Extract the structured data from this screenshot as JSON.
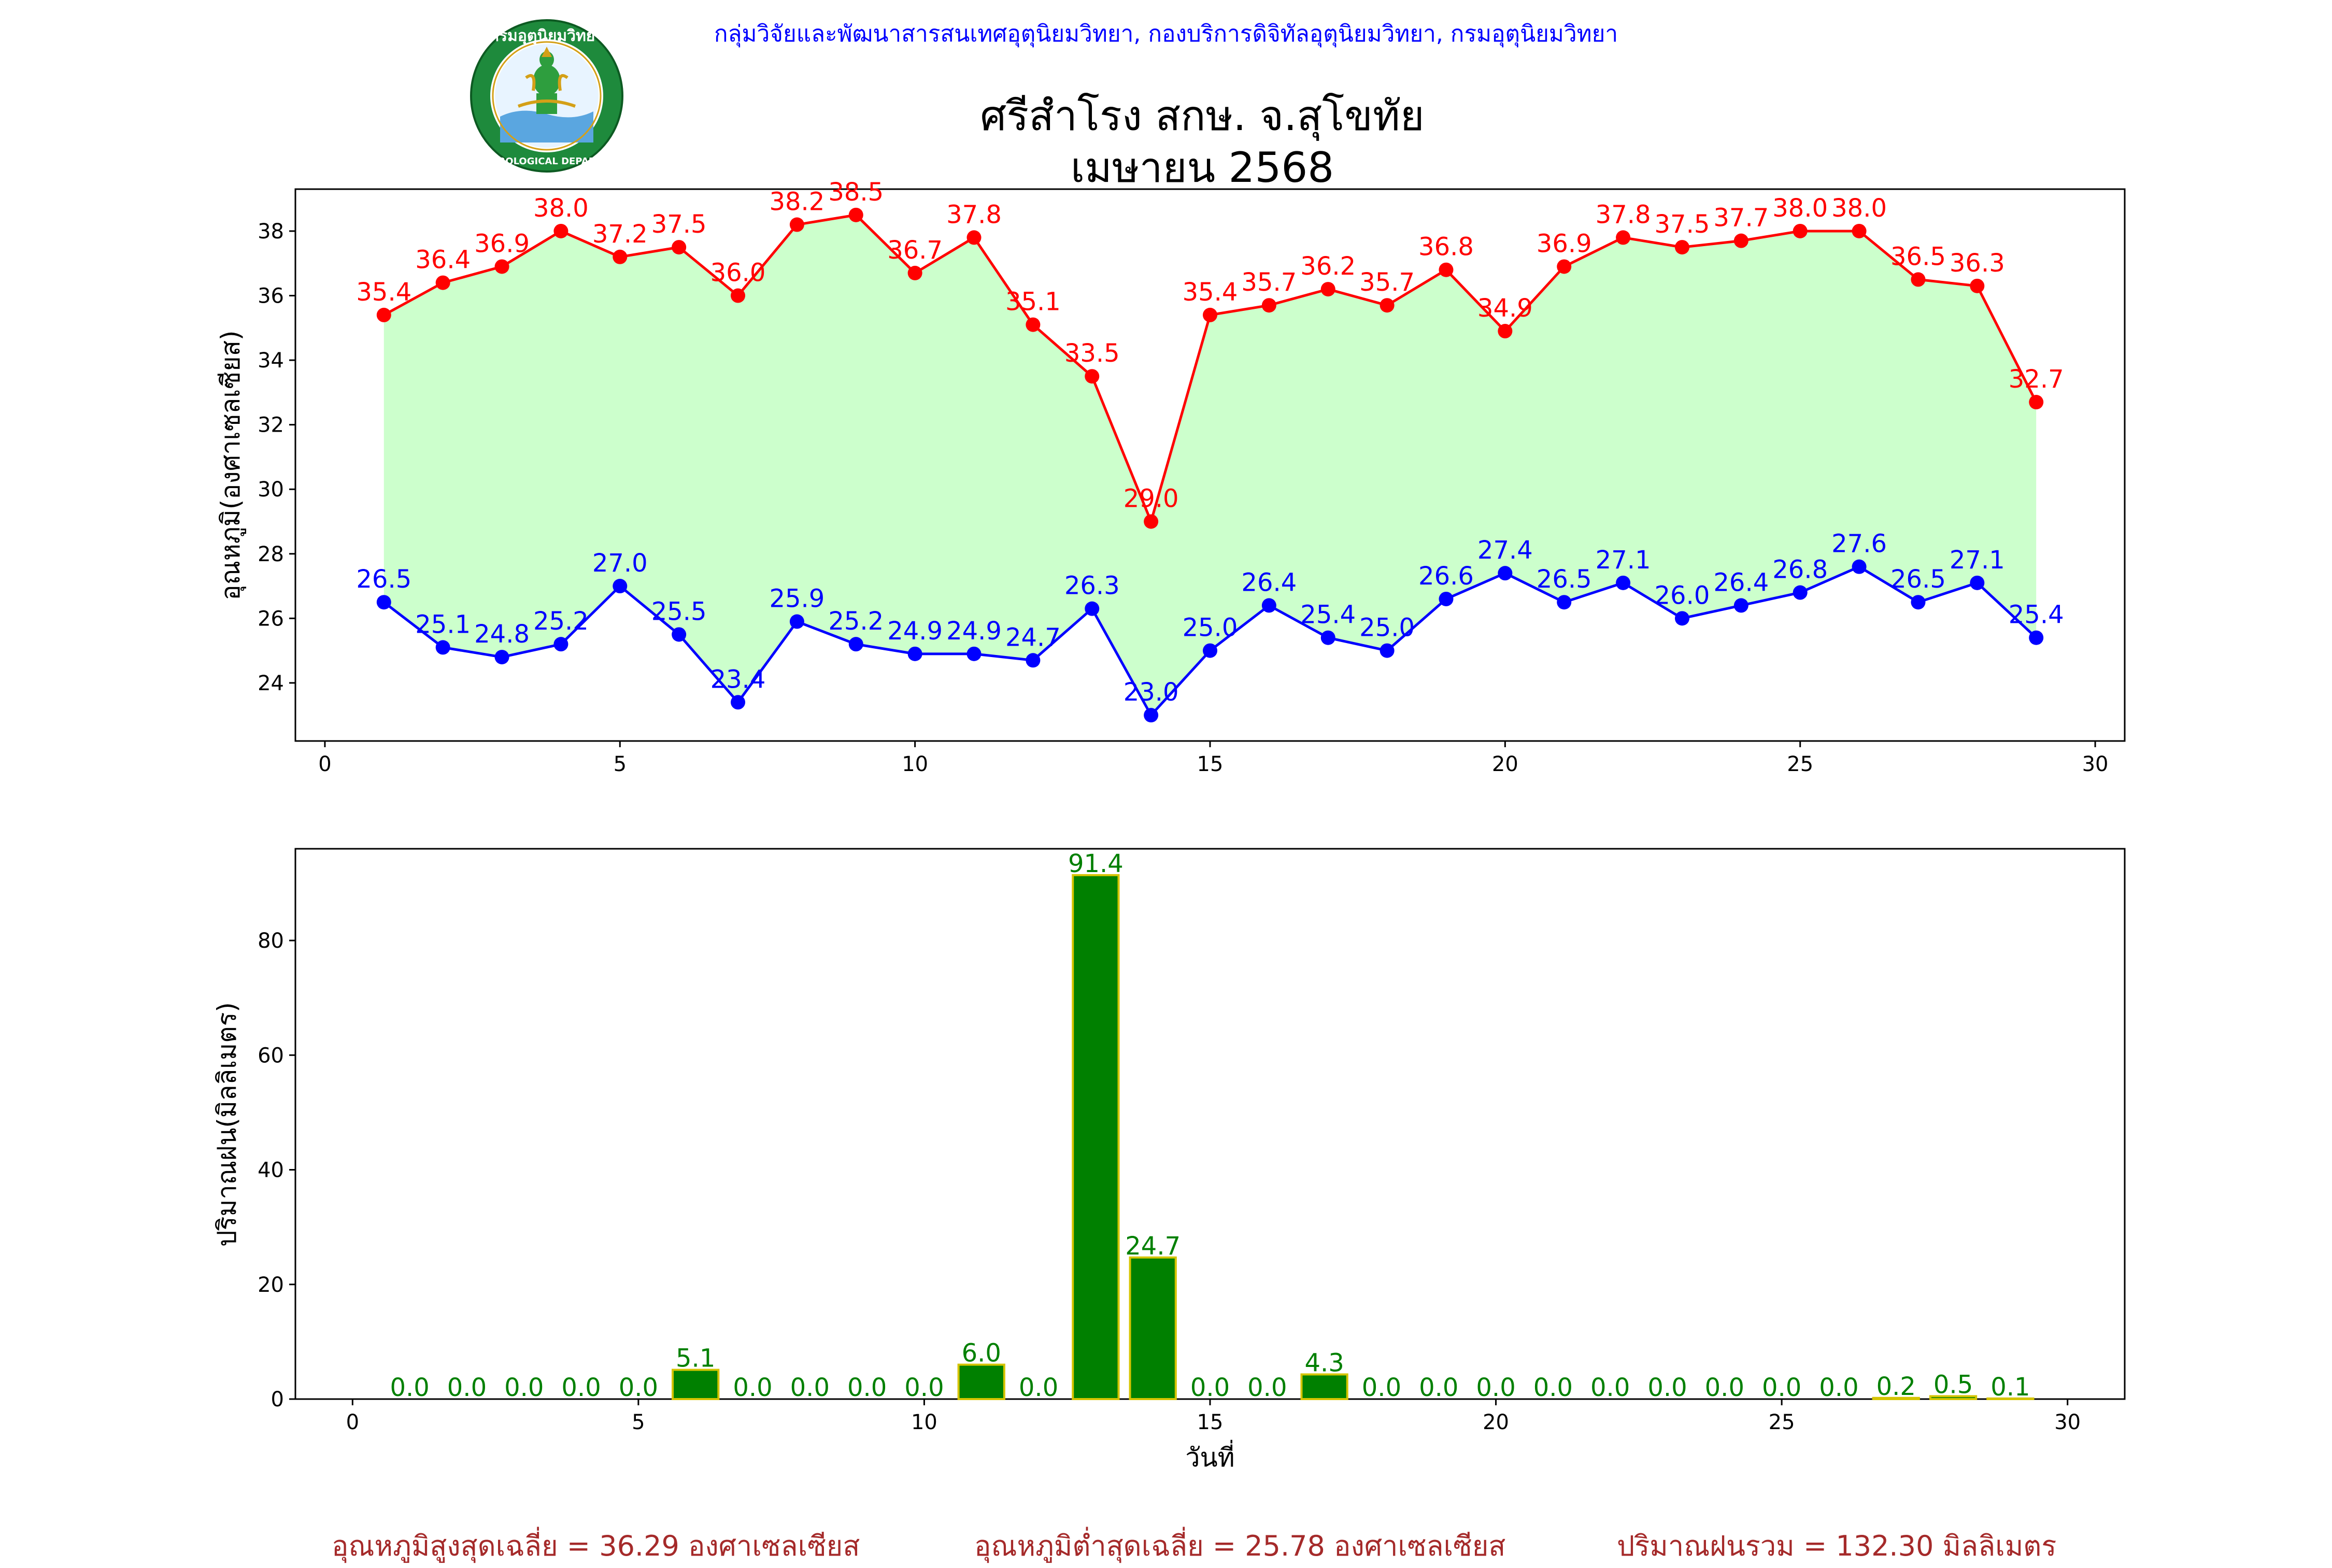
{
  "header": {
    "credit": "กลุ่มวิจัยและพัฒนาสารสนเทศอุตุนิยมวิทยา, กองบริการดิจิทัลอุตุนิยมวิทยา, กรมอุตุนิยมวิทยา",
    "title_line1": "ศรีสำโรง สกษ. จ.สุโขทัย",
    "title_line2": "เมษายน 2568"
  },
  "logo": {
    "top_text": "กรมอุตุนิยมวิทยา",
    "bottom_text": "METEOROLOGICAL DEPARTMENT"
  },
  "colors": {
    "max_temp": "#ff0000",
    "min_temp": "#0000ff",
    "fill": "#ccffcc",
    "rain_bar": "#008000",
    "rain_edge": "#d4c400",
    "stats_text": "#a52a2a"
  },
  "chart_data": [
    {
      "type": "line",
      "title": "",
      "xlabel": "",
      "ylabel": "อุณหภูมิ(องศาเซลเซียส)",
      "xlim": [
        -0.5,
        30.5
      ],
      "ylim": [
        22.2,
        39.3
      ],
      "xticks": [
        0,
        5,
        10,
        15,
        20,
        25,
        30
      ],
      "yticks": [
        24,
        26,
        28,
        30,
        32,
        34,
        36,
        38
      ],
      "x": [
        1,
        2,
        3,
        4,
        5,
        6,
        7,
        8,
        9,
        10,
        11,
        12,
        13,
        14,
        15,
        16,
        17,
        18,
        19,
        20,
        21,
        22,
        23,
        24,
        25,
        26,
        27,
        28,
        29
      ],
      "series": [
        {
          "values": [
            35.4,
            36.4,
            36.9,
            38.0,
            37.2,
            37.5,
            36.0,
            38.2,
            38.5,
            36.7,
            37.8,
            35.1,
            33.5,
            29.0,
            35.4,
            35.7,
            36.2,
            35.7,
            36.8,
            34.9,
            36.9,
            37.8,
            37.5,
            37.7,
            38.0,
            38.0,
            36.5,
            36.3,
            32.7
          ]
        },
        {
          "values": [
            26.5,
            25.1,
            24.8,
            25.2,
            27.0,
            25.5,
            23.4,
            25.9,
            25.2,
            24.9,
            24.9,
            24.7,
            26.3,
            23.0,
            25.0,
            26.4,
            25.4,
            25.0,
            26.6,
            27.4,
            26.5,
            27.1,
            26.0,
            26.4,
            26.8,
            27.6,
            26.5,
            27.1,
            25.4
          ]
        }
      ]
    },
    {
      "type": "bar",
      "title": "",
      "xlabel": "วันที่",
      "ylabel": "ปริมาณฝน(มิลลิเมตร)",
      "xlim": [
        -1,
        31
      ],
      "ylim": [
        0,
        96
      ],
      "xticks": [
        0,
        5,
        10,
        15,
        20,
        25,
        30
      ],
      "yticks": [
        0,
        20,
        40,
        60,
        80
      ],
      "x": [
        1,
        2,
        3,
        4,
        5,
        6,
        7,
        8,
        9,
        10,
        11,
        12,
        13,
        14,
        15,
        16,
        17,
        18,
        19,
        20,
        21,
        22,
        23,
        24,
        25,
        26,
        27,
        28,
        29
      ],
      "values": [
        0.0,
        0.0,
        0.0,
        0.0,
        0.0,
        5.1,
        0.0,
        0.0,
        0.0,
        0.0,
        6.0,
        0.0,
        91.4,
        24.7,
        0.0,
        0.0,
        4.3,
        0.0,
        0.0,
        0.0,
        0.0,
        0.0,
        0.0,
        0.0,
        0.0,
        0.0,
        0.2,
        0.5,
        0.1
      ]
    }
  ],
  "stats": {
    "avg_max": "อุณหภูมิสูงสุดเฉลี่ย = 36.29 องศาเซลเซียส",
    "avg_min": "อุณหภูมิต่ำสุดเฉลี่ย = 25.78 องศาเซลเซียส",
    "total_rain": "ปริมาณฝนรวม = 132.30 มิลลิเมตร"
  }
}
